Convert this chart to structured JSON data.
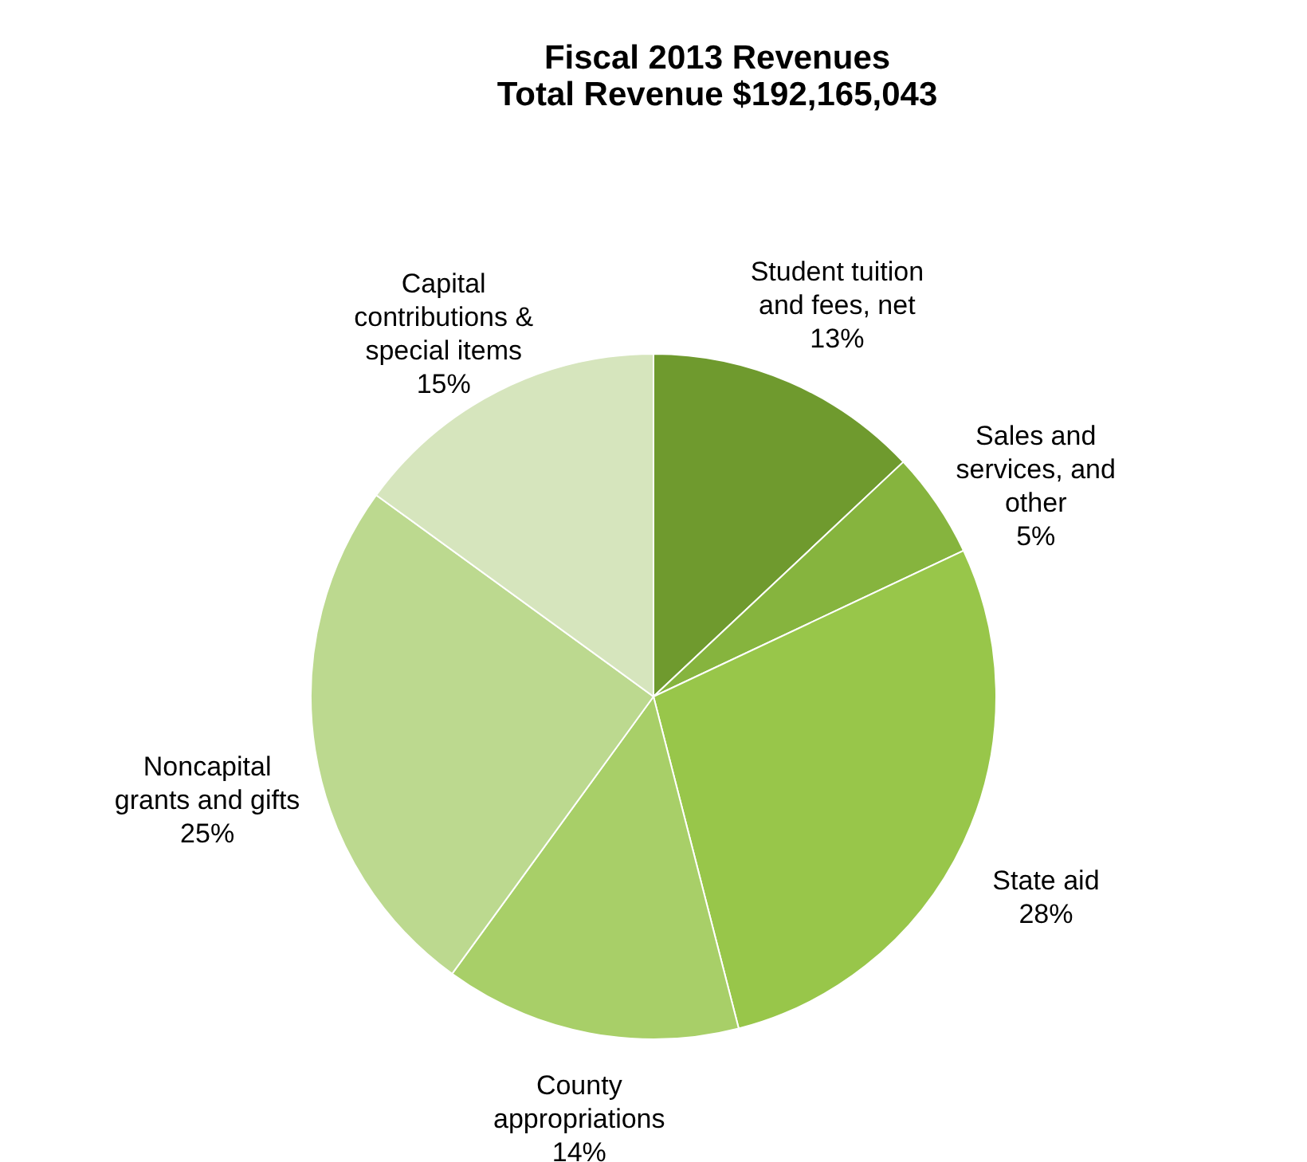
{
  "chart_data": {
    "type": "pie",
    "title": "Fiscal 2013 Revenues",
    "subtitle": "Total Revenue $192,165,043",
    "categories": [
      "Student tuition and fees, net",
      "Sales and services, and other",
      "State aid",
      "County appropriations",
      "Noncapital grants and gifts",
      "Capital contributions & special items"
    ],
    "values": [
      13,
      5,
      28,
      14,
      25,
      15
    ],
    "value_labels": [
      "13%",
      "5%",
      "28%",
      "14%",
      "25%",
      "15%"
    ],
    "colors": [
      "#6f9a2e",
      "#86b43e",
      "#98c64a",
      "#a8cf68",
      "#bcd98f",
      "#d6e5bd"
    ],
    "legend": false
  }
}
